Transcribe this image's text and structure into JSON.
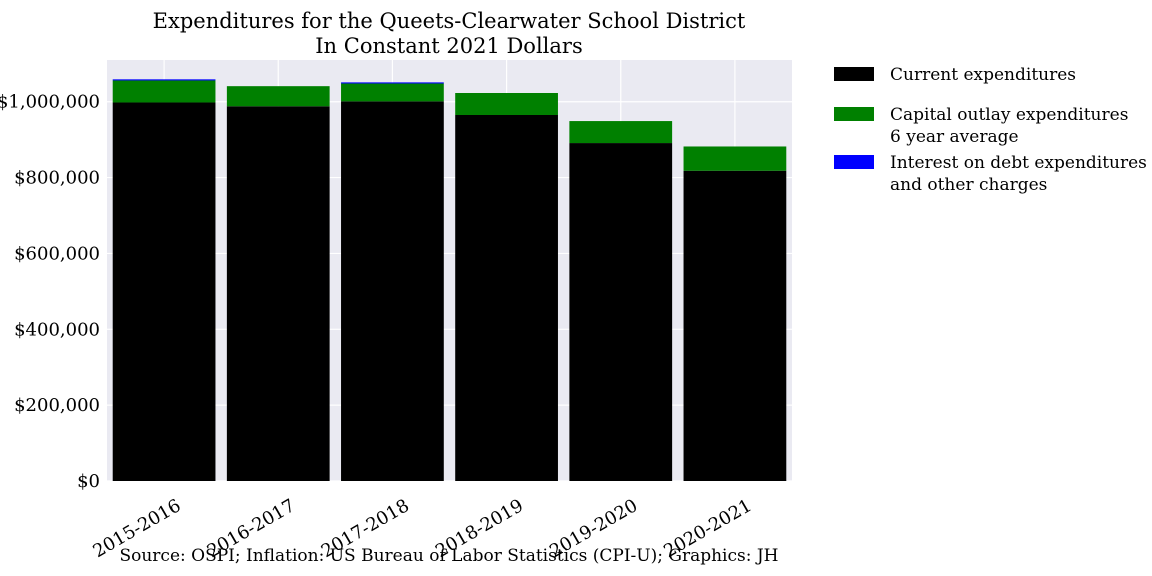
{
  "chart_data": {
    "type": "bar",
    "stacked": true,
    "title": "Expenditures for the Queets-Clearwater School District",
    "subtitle": "In Constant 2021 Dollars",
    "xlabel": "",
    "ylabel": "",
    "categories": [
      "2015-2016",
      "2016-2017",
      "2017-2018",
      "2018-2019",
      "2019-2020",
      "2020-2021"
    ],
    "series": [
      {
        "name": "Current expenditures",
        "color": "#000000",
        "values": [
          998000,
          988000,
          1001000,
          965000,
          891000,
          818000
        ]
      },
      {
        "name": "Capital outlay expenditures\n6 year average",
        "color": "#008000",
        "values": [
          58000,
          53000,
          47000,
          58000,
          58000,
          64000
        ]
      },
      {
        "name": "Interest on debt expenditures\nand other charges",
        "color": "#0000ff",
        "values": [
          3000,
          0,
          3000,
          0,
          0,
          0
        ]
      }
    ],
    "ylim": [
      0,
      1110000
    ],
    "yticks": [
      0,
      200000,
      400000,
      600000,
      800000,
      1000000
    ],
    "ytick_labels": [
      "$0",
      "$200,000",
      "$400,000",
      "$600,000",
      "$800,000",
      "$1,000,000"
    ],
    "grid": true,
    "legend_position": "outside-right-top",
    "background_color": "#eaeaf2",
    "source_note": "Source: OSPI; Inflation: US Bureau of Labor Statistics (CPI-U); Graphics: JH"
  }
}
